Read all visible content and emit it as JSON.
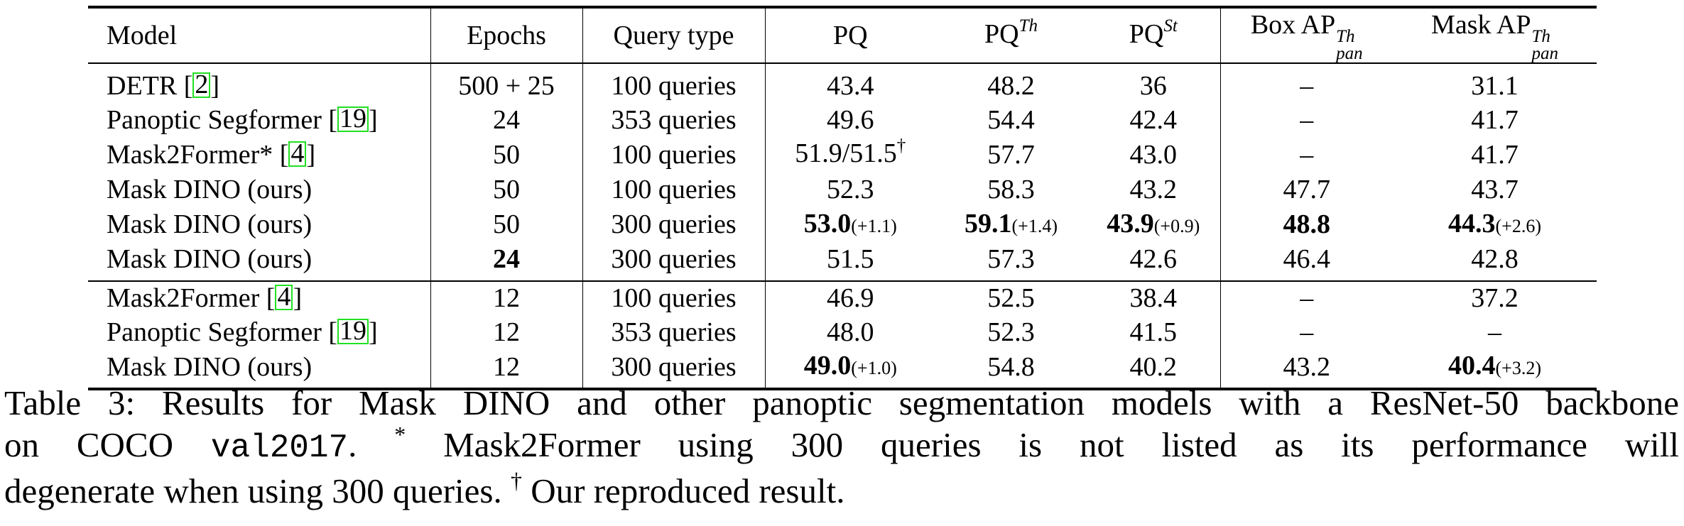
{
  "table": {
    "headers": {
      "model": "Model",
      "epochs": "Epochs",
      "query_type": "Query type",
      "pq": "PQ",
      "pq_th_base": "PQ",
      "pq_th_sup": "Th",
      "pq_st_base": "PQ",
      "pq_st_sup": "St",
      "box_ap_base": "Box AP",
      "box_ap_sup": "Th",
      "box_ap_sub": "pan",
      "mask_ap_base": "Mask AP",
      "mask_ap_sup": "Th",
      "mask_ap_sub": "pan"
    },
    "rows": [
      {
        "model": "DETR [",
        "ref": "2",
        "ref_close": "]",
        "epochs": "500 + 25",
        "query": "100 queries",
        "pq": "43.4",
        "pq_th": "48.2",
        "pq_st": "36",
        "box_ap": "–",
        "mask_ap": "31.1"
      },
      {
        "model": "Panoptic Segformer [",
        "ref": "19",
        "ref_close": "]",
        "epochs": "24",
        "query": "353 queries",
        "pq": "49.6",
        "pq_th": "54.4",
        "pq_st": "42.4",
        "box_ap": "–",
        "mask_ap": "41.7"
      },
      {
        "model": "Mask2Former* [",
        "ref": "4",
        "ref_close": "]",
        "epochs": "50",
        "query": "100 queries",
        "pq": "51.9/51.5",
        "pq_dagger": "†",
        "pq_th": "57.7",
        "pq_st": "43.0",
        "box_ap": "–",
        "mask_ap": "41.7"
      },
      {
        "model": "Mask DINO (ours)",
        "epochs": "50",
        "query": "100 queries",
        "pq": "52.3",
        "pq_th": "58.3",
        "pq_st": "43.2",
        "box_ap": "47.7",
        "mask_ap": "43.7"
      },
      {
        "model": "Mask DINO (ours)",
        "epochs": "50",
        "query": "300 queries",
        "pq": "53.0",
        "pq_gain": "(+1.1)",
        "pq_th": "59.1",
        "pq_th_gain": "(+1.4)",
        "pq_st": "43.9",
        "pq_st_gain": "(+0.9)",
        "box_ap": "48.8",
        "mask_ap": "44.3",
        "mask_ap_gain": "(+2.6)"
      },
      {
        "model": "Mask DINO (ours)",
        "epochs": "24",
        "query": "300 queries",
        "pq": "51.5",
        "pq_th": "57.3",
        "pq_st": "42.6",
        "box_ap": "46.4",
        "mask_ap": "42.8"
      },
      {
        "model": "Mask2Former [",
        "ref": "4",
        "ref_close": "]",
        "epochs": "12",
        "query": "100 queries",
        "pq": "46.9",
        "pq_th": "52.5",
        "pq_st": "38.4",
        "box_ap": "–",
        "mask_ap": "37.2"
      },
      {
        "model": "Panoptic Segformer [",
        "ref": "19",
        "ref_close": "]",
        "epochs": "12",
        "query": "353 queries",
        "pq": "48.0",
        "pq_th": "52.3",
        "pq_st": "41.5",
        "box_ap": "–",
        "mask_ap": "–"
      },
      {
        "model": "Mask DINO (ours)",
        "epochs": "12",
        "query": "300 queries",
        "pq": "49.0",
        "pq_gain": "(+1.0)",
        "pq_th": "54.8",
        "pq_st": "40.2",
        "box_ap": "43.2",
        "mask_ap": "40.4",
        "mask_ap_gain": "(+3.2)"
      }
    ]
  },
  "caption": {
    "l1": "Table 3: Results for Mask DINO and other panoptic segmentation models with a ResNet-50 backbone",
    "l2_a": "on COCO",
    "l2_code": "val2017",
    "l2_b": ". ",
    "l2_star": "*",
    "l2_c": " Mask2Former using 300 queries is not listed as its performance will",
    "l3_a": "degenerate when using 300 queries.",
    "l3_dagger": "†",
    "l3_b": " Our reproduced result."
  }
}
